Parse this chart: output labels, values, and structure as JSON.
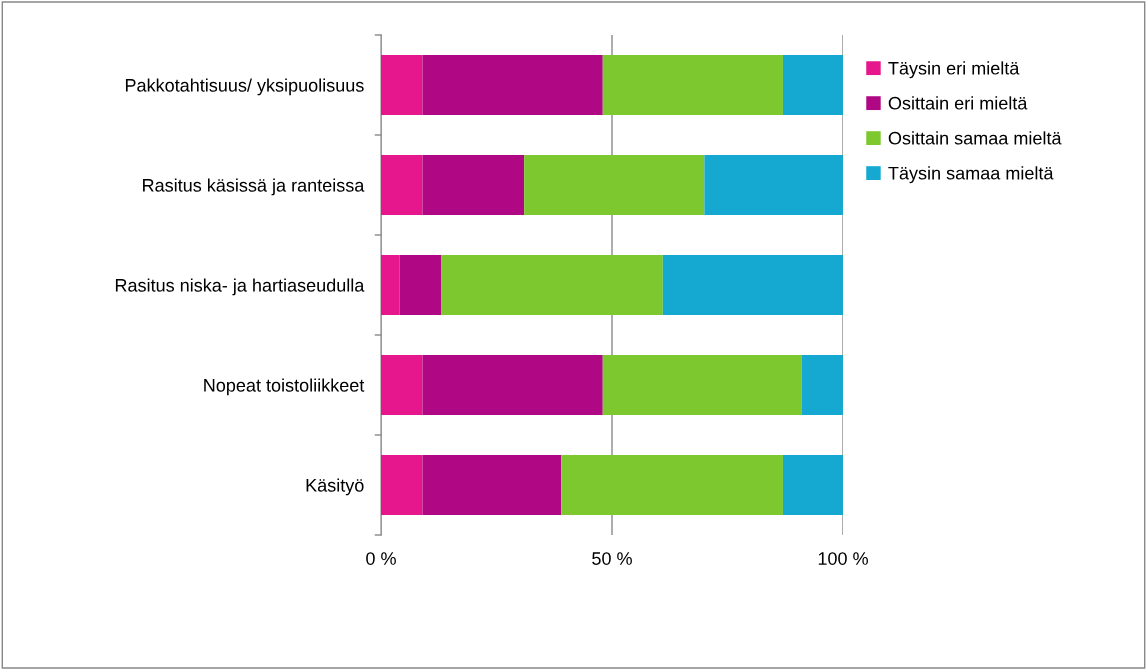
{
  "chart_data": {
    "type": "bar",
    "orientation": "horizontal",
    "stacked": true,
    "categories": [
      "Pakkotahtisuus/ yksipuolisuus",
      "Rasitus käsissä ja ranteissa",
      "Rasitus niska- ja hartiaseudulla",
      "Nopeat toistoliikkeet",
      "Käsityö"
    ],
    "series": [
      {
        "name": "Täysin eri mieltä",
        "color": "#e6168c",
        "values": [
          9,
          9,
          4,
          9,
          9
        ]
      },
      {
        "name": "Osittain eri mieltä",
        "color": "#b00884",
        "values": [
          39,
          22,
          9,
          39,
          30
        ]
      },
      {
        "name": "Osittain samaa mieltä",
        "color": "#7cc82e",
        "values": [
          39,
          39,
          48,
          43,
          48
        ]
      },
      {
        "name": "Täysin samaa mieltä",
        "color": "#15a9d2",
        "values": [
          13,
          30,
          39,
          9,
          13
        ]
      }
    ],
    "xlim": [
      0,
      100
    ],
    "xticks": [
      {
        "value": 0,
        "label": "0 %"
      },
      {
        "value": 50,
        "label": "50 %"
      },
      {
        "value": 100,
        "label": "100 %"
      }
    ],
    "grid": "x",
    "legend": "top right"
  }
}
